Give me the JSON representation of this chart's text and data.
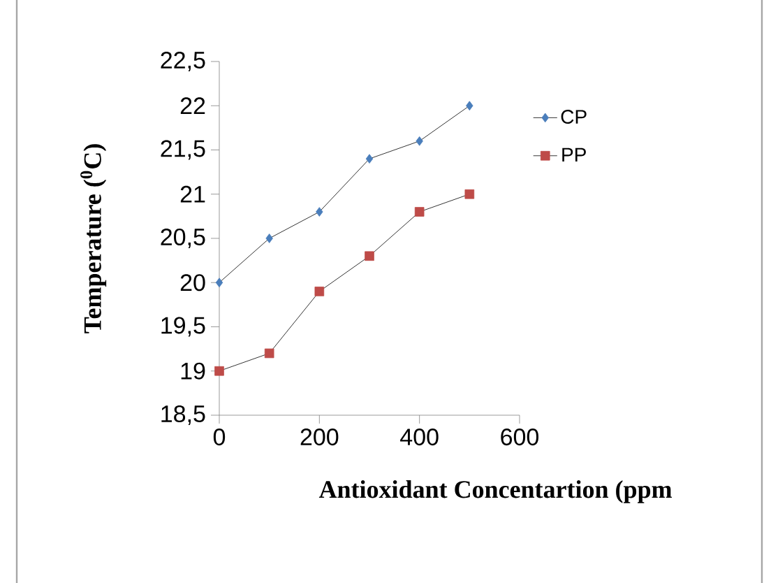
{
  "chart_data": {
    "type": "line",
    "xlabel": "Antioxidant Concentartion  (ppm",
    "ylabel": "Temperature ($^{0}$C)",
    "xlim": [
      0,
      600
    ],
    "xticks": [
      0,
      200,
      400,
      600
    ],
    "ylim": [
      18.5,
      22.5
    ],
    "yticks": [
      {
        "value": 18.5,
        "label": "18,5"
      },
      {
        "value": 19,
        "label": "19"
      },
      {
        "value": 19.5,
        "label": "19,5"
      },
      {
        "value": 20,
        "label": "20"
      },
      {
        "value": 20.5,
        "label": "20,5"
      },
      {
        "value": 21,
        "label": "21"
      },
      {
        "value": 21.5,
        "label": "21,5"
      },
      {
        "value": 22,
        "label": "22"
      },
      {
        "value": 22.5,
        "label": "22,5"
      }
    ],
    "x": [
      0,
      100,
      200,
      300,
      400,
      500
    ],
    "series": [
      {
        "name": "CP",
        "color": "#4a7ebb",
        "marker": "diamond",
        "values": [
          20,
          20.5,
          20.8,
          21.4,
          21.6,
          22
        ]
      },
      {
        "name": "PP",
        "color": "#be4b48",
        "marker": "square",
        "values": [
          19,
          19.2,
          19.9,
          20.3,
          20.8,
          21
        ]
      }
    ],
    "legend": "right",
    "grid": false,
    "line_style": "solid"
  }
}
